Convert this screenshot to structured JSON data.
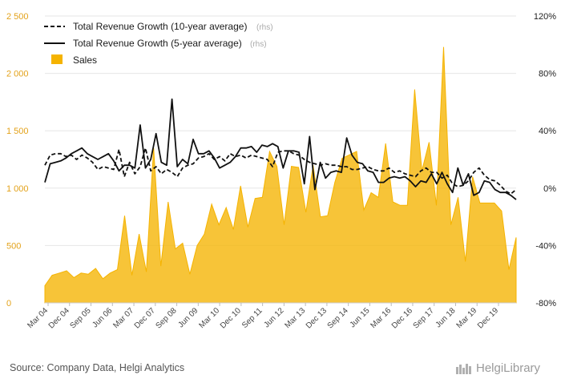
{
  "chart_data": {
    "type": "area",
    "left_axis": {
      "ticks": [
        "0",
        "500",
        "1 000",
        "1 500",
        "2 000",
        "2 500"
      ],
      "values": [
        0,
        500,
        1000,
        1500,
        2000,
        2500
      ],
      "ylim": [
        0,
        2500
      ]
    },
    "right_axis": {
      "ticks": [
        "-80%",
        "-40%",
        "0%",
        "40%",
        "80%",
        "120%"
      ],
      "values": [
        -80,
        -40,
        0,
        40,
        80,
        120
      ],
      "ylim": [
        -80,
        120
      ]
    },
    "x_ticks": [
      "Mar 04",
      "Dec 04",
      "Sep 05",
      "Jun 06",
      "Mar 07",
      "Dec 07",
      "Sep 08",
      "Jun 09",
      "Mar 10",
      "Dec 10",
      "Sep 11",
      "Jun 12",
      "Mar 13",
      "Dec 13",
      "Sep 14",
      "Jun 15",
      "Mar 16",
      "Dec 16",
      "Sep 17",
      "Jun 18",
      "Mar 19",
      "Dec 19"
    ],
    "grid": true,
    "legend_position": "top-left",
    "series": [
      {
        "name": "Total Revenue Growth (10-year average)",
        "axis": "right",
        "style": "dashed",
        "color": "#111111",
        "values": [
          16,
          23,
          24,
          24,
          22,
          23,
          20,
          23,
          21,
          18,
          13,
          15,
          14,
          13,
          27,
          8,
          18,
          10,
          15,
          28,
          12,
          15,
          10,
          13,
          11,
          8,
          14,
          16,
          17,
          21,
          22,
          24,
          20,
          22,
          19,
          24,
          22,
          23,
          21,
          23,
          22,
          21,
          20,
          15,
          25,
          26,
          26,
          24,
          23,
          20,
          18,
          17,
          16,
          17,
          16,
          16,
          15,
          15,
          13,
          13,
          14,
          15,
          13,
          12,
          12,
          14,
          11,
          12,
          10,
          9,
          8,
          12,
          14,
          11,
          11,
          7,
          9,
          3,
          1,
          2,
          5,
          11,
          14,
          9,
          6,
          5,
          2,
          -2,
          -4,
          -1
        ]
      },
      {
        "name": "Total Revenue Growth (5-year average)",
        "axis": "right",
        "style": "solid",
        "color": "#111111",
        "values": [
          4,
          17,
          18,
          19,
          21,
          24,
          26,
          28,
          24,
          22,
          20,
          22,
          24,
          19,
          12,
          16,
          16,
          14,
          44,
          14,
          20,
          38,
          18,
          16,
          62,
          15,
          20,
          17,
          34,
          24,
          24,
          26,
          21,
          14,
          16,
          18,
          22,
          28,
          28,
          29,
          25,
          30,
          29,
          31,
          29,
          14,
          26,
          26,
          25,
          3,
          36,
          -1,
          18,
          7,
          11,
          12,
          11,
          35,
          23,
          18,
          17,
          12,
          11,
          4,
          4,
          7,
          8,
          7,
          8,
          5,
          1,
          5,
          4,
          10,
          3,
          11,
          3,
          -3,
          14,
          2,
          10,
          -5,
          -3,
          5,
          4,
          -1,
          -3,
          -3,
          -5,
          -8
        ]
      },
      {
        "name": "Sales",
        "axis": "left",
        "type": "area",
        "color": "#f5b300",
        "values": [
          150,
          240,
          260,
          280,
          220,
          260,
          250,
          300,
          210,
          260,
          290,
          760,
          240,
          600,
          270,
          1350,
          320,
          880,
          470,
          520,
          250,
          500,
          600,
          860,
          680,
          830,
          640,
          1020,
          660,
          910,
          920,
          1320,
          1190,
          680,
          1190,
          1180,
          790,
          1200,
          750,
          760,
          1050,
          1260,
          1290,
          1320,
          810,
          960,
          920,
          1390,
          880,
          850,
          850,
          1860,
          1150,
          1400,
          850,
          2230,
          680,
          920,
          360,
          1100,
          870,
          870,
          870,
          800,
          290,
          570
        ]
      }
    ]
  },
  "legend": [
    {
      "label": "Total Revenue Growth (10-year average)",
      "note": "(rhs)"
    },
    {
      "label": "Total Revenue Growth (5-year average)",
      "note": "(rhs)"
    },
    {
      "label": "Sales",
      "note": ""
    }
  ],
  "source": "Source: Company Data, Helgi Analytics",
  "brand": "HelgiLibrary",
  "colors": {
    "sales": "#f5b300",
    "line": "#111111",
    "grid": "#e6e6e6",
    "left_ticks": "#e3a21a"
  }
}
